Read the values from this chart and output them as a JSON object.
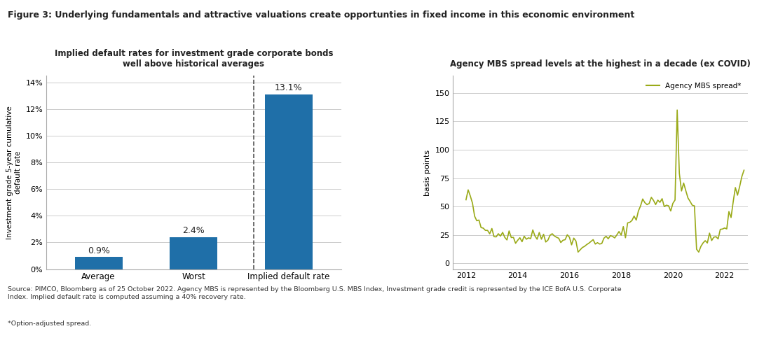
{
  "title": "Figure 3: Underlying fundamentals and attractive valuations create opportunties in fixed income in this economic environment",
  "left_subtitle": "Implied default rates for investment grade corporate bonds\nwell above historical averages",
  "right_subtitle": "Agency MBS spread levels at the highest in a decade (ex COVID)",
  "bar_categories": [
    "Average",
    "Worst",
    "Implied default rate"
  ],
  "bar_values": [
    0.9,
    2.4,
    13.1
  ],
  "bar_labels": [
    "0.9%",
    "2.4%",
    "13.1%"
  ],
  "bar_color": "#1f6fa8",
  "bar_ylabel": "Investment grade 5-year cumulative\ndefault rate",
  "bar_yticks": [
    0,
    2,
    4,
    6,
    8,
    10,
    12,
    14
  ],
  "bar_yticklabels": [
    "0%",
    "2%",
    "4%",
    "6%",
    "8%",
    "10%",
    "12%",
    "14%"
  ],
  "bar_ylim": [
    0,
    14.5
  ],
  "line_ylabel": "basis points",
  "line_yticks": [
    0,
    25,
    50,
    75,
    100,
    125,
    150
  ],
  "line_ylim": [
    -5,
    165
  ],
  "line_color": "#9aaa18",
  "line_label": "Agency MBS spread*",
  "line_xticks": [
    2012,
    2014,
    2016,
    2018,
    2020,
    2022
  ],
  "source_text": "Source: PIMCO, Bloomberg as of 25 October 2022. Agency MBS is represented by the Bloomberg U.S. MBS Index, Investment grade credit is represented by the ICE BofA U.S. Corporate\nIndex. Implied default rate is computed assuming a 40% recovery rate.",
  "footnote_text": "*Option-adjusted spread.",
  "background_color": "#ffffff",
  "grid_color": "#cccccc",
  "text_color": "#222222"
}
